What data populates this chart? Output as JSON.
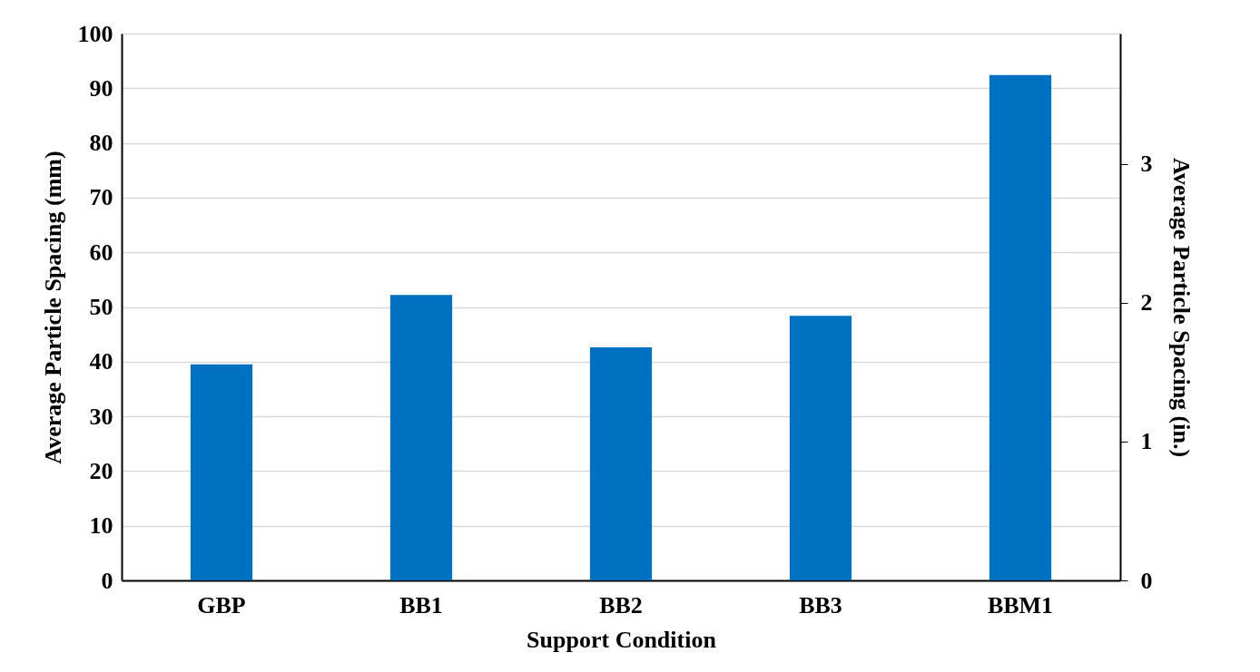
{
  "chart_data": {
    "type": "bar",
    "xlabel": "Support Condition",
    "ylabel": "Average Particle Spacing (mm)",
    "y2label": "Average Particle Spacing (in.)",
    "categories": [
      "GBP",
      "BB1",
      "BB2",
      "BB3",
      "BBM1"
    ],
    "values": [
      39.5,
      52.2,
      42.6,
      48.4,
      92.4
    ],
    "color": "#0070c0",
    "ylim": [
      0,
      100
    ],
    "yticks": [
      0,
      10,
      20,
      30,
      40,
      50,
      60,
      70,
      80,
      90,
      100
    ],
    "y2lim": [
      0,
      3.937
    ],
    "y2ticks": [
      0,
      1,
      2,
      3
    ],
    "grid": "y"
  }
}
